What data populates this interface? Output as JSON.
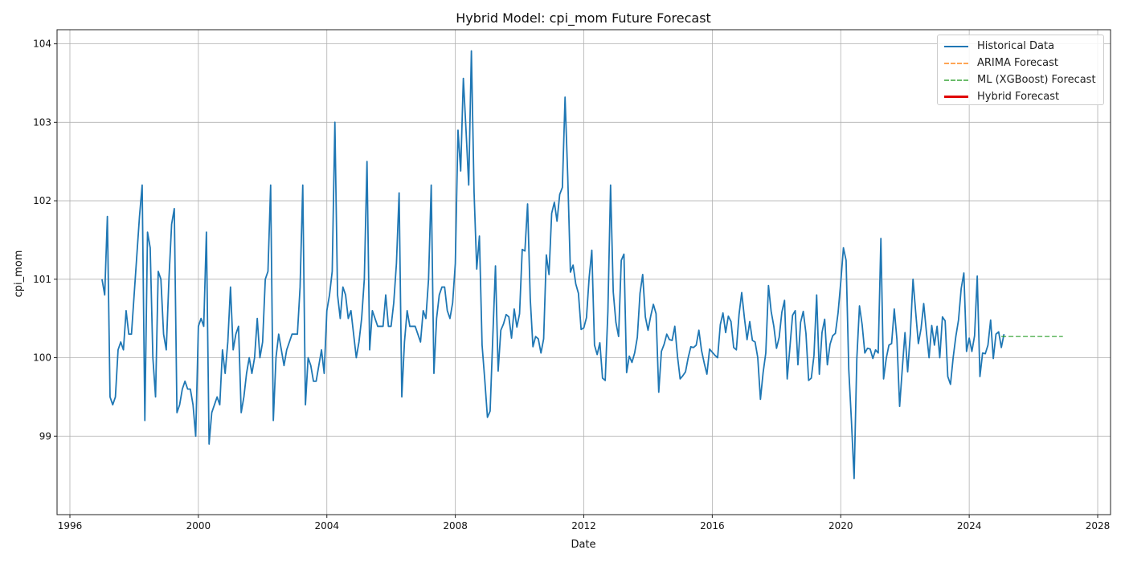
{
  "chart_data": {
    "type": "line",
    "title": "Hybrid Model: cpi_mom Future Forecast",
    "xlabel": "Date",
    "ylabel": "cpi_mom",
    "xlim": [
      1995.6,
      2028.4
    ],
    "ylim": [
      98.0,
      104.18
    ],
    "x_ticks": [
      1996,
      2000,
      2004,
      2008,
      2012,
      2016,
      2020,
      2024,
      2028
    ],
    "y_ticks": [
      99,
      100,
      101,
      102,
      103,
      104
    ],
    "grid": true,
    "legend_position": "top-right",
    "series": [
      {
        "name": "Historical Data",
        "color": "#1f77b4",
        "style": "solid",
        "start": 1997.0,
        "step": 0.0833333,
        "values": [
          101.0,
          100.8,
          101.8,
          99.5,
          99.4,
          99.5,
          100.1,
          100.2,
          100.1,
          100.6,
          100.3,
          100.3,
          100.8,
          101.3,
          101.8,
          102.2,
          99.2,
          101.6,
          101.4,
          100.0,
          99.5,
          101.1,
          101.0,
          100.3,
          100.1,
          101.0,
          101.7,
          101.9,
          99.3,
          99.4,
          99.6,
          99.7,
          99.6,
          99.6,
          99.4,
          99.0,
          100.4,
          100.5,
          100.4,
          101.6,
          98.9,
          99.3,
          99.4,
          99.5,
          99.4,
          100.1,
          99.8,
          100.2,
          100.9,
          100.1,
          100.3,
          100.4,
          99.3,
          99.5,
          99.8,
          100.0,
          99.8,
          100.0,
          100.5,
          100.0,
          100.2,
          101.0,
          101.1,
          102.2,
          99.2,
          100.0,
          100.3,
          100.1,
          99.9,
          100.1,
          100.2,
          100.3,
          100.3,
          100.3,
          100.9,
          102.2,
          99.4,
          100.0,
          99.9,
          99.7,
          99.7,
          99.9,
          100.1,
          99.8,
          100.6,
          100.8,
          101.1,
          103.0,
          100.8,
          100.5,
          100.9,
          100.8,
          100.5,
          100.6,
          100.3,
          100.0,
          100.2,
          100.5,
          101.0,
          102.5,
          100.1,
          100.6,
          100.5,
          100.4,
          100.4,
          100.4,
          100.8,
          100.4,
          100.4,
          100.7,
          101.2,
          102.1,
          99.5,
          100.2,
          100.6,
          100.4,
          100.4,
          100.4,
          100.3,
          100.2,
          100.6,
          100.5,
          101.0,
          102.2,
          99.8,
          100.5,
          100.8,
          100.9,
          100.9,
          100.6,
          100.5,
          100.7,
          101.2,
          102.9,
          102.38,
          103.56,
          102.9,
          102.2,
          103.91,
          102.11,
          101.13,
          101.55,
          100.16,
          99.72,
          99.24,
          99.32,
          100.26,
          101.17,
          99.83,
          100.35,
          100.43,
          100.55,
          100.52,
          100.25,
          100.62,
          100.39,
          100.56,
          101.38,
          101.36,
          101.96,
          100.75,
          100.14,
          100.27,
          100.24,
          100.06,
          100.24,
          101.31,
          101.06,
          101.84,
          101.98,
          101.74,
          102.08,
          102.17,
          103.32,
          102.31,
          101.09,
          101.18,
          100.94,
          100.82,
          100.36,
          100.38,
          100.51,
          101.02,
          101.37,
          100.16,
          100.04,
          100.19,
          99.74,
          99.71,
          100.59,
          102.2,
          100.84,
          100.45,
          100.27,
          101.24,
          101.32,
          99.81,
          100.02,
          99.94,
          100.06,
          100.26,
          100.82,
          101.06,
          100.52,
          100.35,
          100.53,
          100.68,
          100.56,
          99.56,
          100.08,
          100.17,
          100.3,
          100.23,
          100.22,
          100.4,
          100.02,
          99.73,
          99.77,
          99.82,
          100.0,
          100.14,
          100.13,
          100.16,
          100.35,
          100.09,
          99.93,
          99.79,
          100.11,
          100.07,
          100.03,
          100.0,
          100.42,
          100.57,
          100.32,
          100.53,
          100.46,
          100.13,
          100.1,
          100.55,
          100.83,
          100.51,
          100.23,
          100.46,
          100.22,
          100.2,
          100.0,
          99.47,
          99.81,
          100.06,
          100.92,
          100.59,
          100.4,
          100.12,
          100.26,
          100.58,
          100.73,
          99.73,
          100.13,
          100.54,
          100.6,
          99.91,
          100.45,
          100.59,
          100.31,
          99.71,
          99.74,
          100.03,
          100.8,
          99.79,
          100.32,
          100.49,
          99.91,
          100.17,
          100.28,
          100.31,
          100.57,
          100.96,
          101.4,
          101.24,
          99.85,
          99.19,
          98.46,
          99.98,
          100.66,
          100.42,
          100.06,
          100.12,
          100.11,
          99.99,
          100.1,
          100.06,
          101.52,
          99.73,
          99.99,
          100.16,
          100.18,
          100.62,
          100.23,
          99.38,
          99.86,
          100.32,
          99.82,
          100.3,
          101.0,
          100.58,
          100.18,
          100.37,
          100.69,
          100.33,
          100.0,
          100.41,
          100.16,
          100.4,
          100.0,
          100.52,
          100.47,
          99.76,
          99.66,
          100.0,
          100.27,
          100.48,
          100.88,
          101.08,
          100.08,
          100.25,
          100.08,
          100.28,
          101.04,
          99.76,
          100.06,
          100.05,
          100.16,
          100.48,
          99.99,
          100.3,
          100.33,
          100.13,
          100.3
        ]
      },
      {
        "name": "ARIMA Forecast",
        "color": "#ff7f0e",
        "style": "dashed",
        "start": 2025.0,
        "step": 0.0833333,
        "values": []
      },
      {
        "name": "ML (XGBoost) Forecast",
        "color": "#2ca02c",
        "style": "dashed",
        "start": 2025.0,
        "step": 0.0833333,
        "values": [
          100.27,
          100.27,
          100.27,
          100.27,
          100.27,
          100.27,
          100.27,
          100.27,
          100.27,
          100.27,
          100.27,
          100.27,
          100.27,
          100.27,
          100.27,
          100.27,
          100.27,
          100.27,
          100.27,
          100.27,
          100.27,
          100.27,
          100.27,
          100.27
        ]
      },
      {
        "name": "Hybrid Forecast",
        "color": "#e00000",
        "style": "solid",
        "start": 2025.0,
        "step": 0.0833333,
        "values": []
      }
    ]
  }
}
